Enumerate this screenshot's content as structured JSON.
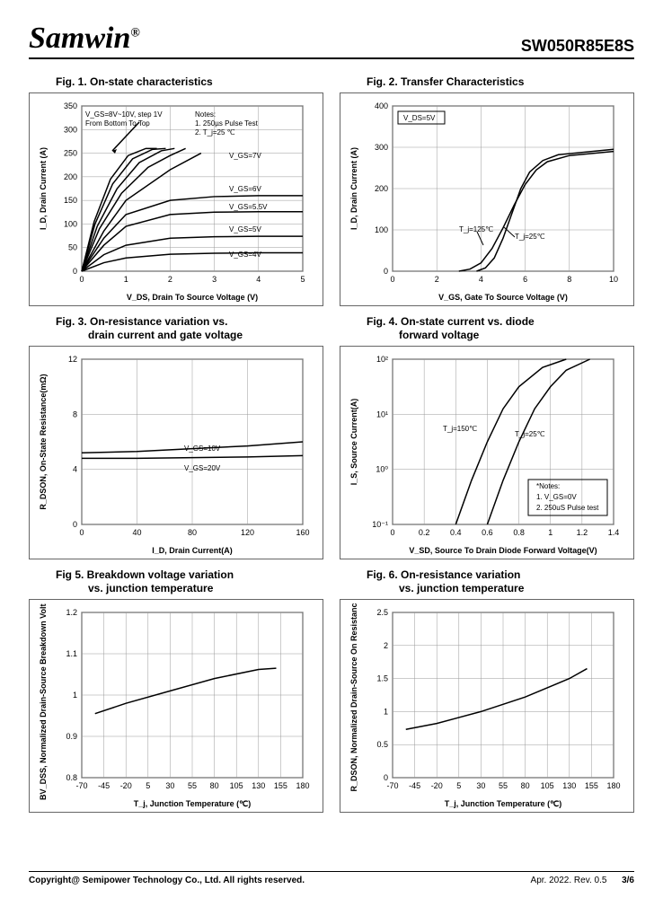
{
  "header": {
    "brand": "Samwin",
    "reg": "®",
    "part": "SW050R85E8S"
  },
  "footer": {
    "copyright": "Copyright@ Semipower Technology Co., Ltd. All rights reserved.",
    "rev": "Apr. 2022. Rev. 0.5",
    "page": "3/6"
  },
  "charts": [
    {
      "title": "Fig. 1. On-state characteristics",
      "xlabel": "V_DS, Drain To Source Voltage (V)",
      "ylabel": "I_D, Drain Current (A)",
      "xlim": [
        0,
        5
      ],
      "ylim": [
        0,
        350
      ],
      "xticks": [
        0,
        1,
        2,
        3,
        4,
        5
      ],
      "yticks": [
        0,
        50,
        100,
        150,
        200,
        250,
        300,
        350
      ],
      "annotations": [
        "V_GS=8V~10V, step 1V",
        "From Bottom To Top",
        "Notes:",
        "1. 250µs Pulse Test",
        "2. T_j=25 ℃",
        "V_GS=7V",
        "V_GS=6V",
        "V_GS=5.5V",
        "V_GS=5V",
        "V_GS=4V"
      ],
      "series": [
        {
          "pts": [
            [
              0,
              0
            ],
            [
              0.5,
              18
            ],
            [
              1,
              28
            ],
            [
              2,
              36
            ],
            [
              3,
              38
            ],
            [
              4,
              39
            ],
            [
              5,
              39
            ]
          ]
        },
        {
          "pts": [
            [
              0,
              0
            ],
            [
              0.5,
              35
            ],
            [
              1,
              55
            ],
            [
              2,
              70
            ],
            [
              3,
              73
            ],
            [
              4,
              74
            ],
            [
              5,
              74
            ]
          ]
        },
        {
          "pts": [
            [
              0,
              0
            ],
            [
              0.5,
              55
            ],
            [
              1,
              95
            ],
            [
              2,
              120
            ],
            [
              3,
              125
            ],
            [
              4,
              126
            ],
            [
              5,
              126
            ]
          ]
        },
        {
          "pts": [
            [
              0,
              0
            ],
            [
              0.5,
              70
            ],
            [
              1,
              120
            ],
            [
              2,
              150
            ],
            [
              3,
              158
            ],
            [
              4,
              160
            ],
            [
              5,
              160
            ]
          ]
        },
        {
          "pts": [
            [
              0,
              0
            ],
            [
              0.5,
              85
            ],
            [
              1,
              150
            ],
            [
              2,
              215
            ],
            [
              2.7,
              250
            ]
          ]
        },
        {
          "pts": [
            [
              0,
              0
            ],
            [
              0.4,
              90
            ],
            [
              0.9,
              165
            ],
            [
              1.5,
              220
            ],
            [
              2.0,
              245
            ],
            [
              2.35,
              260
            ]
          ]
        },
        {
          "pts": [
            [
              0,
              0
            ],
            [
              0.35,
              95
            ],
            [
              0.8,
              175
            ],
            [
              1.3,
              230
            ],
            [
              1.8,
              255
            ],
            [
              2.1,
              260
            ]
          ]
        },
        {
          "pts": [
            [
              0,
              0
            ],
            [
              0.3,
              100
            ],
            [
              0.7,
              185
            ],
            [
              1.15,
              238
            ],
            [
              1.6,
              258
            ],
            [
              1.9,
              260
            ]
          ]
        },
        {
          "pts": [
            [
              0,
              0
            ],
            [
              0.28,
              105
            ],
            [
              0.65,
              195
            ],
            [
              1.05,
              245
            ],
            [
              1.45,
              260
            ],
            [
              1.7,
              260
            ]
          ]
        }
      ]
    },
    {
      "title": "Fig. 2. Transfer Characteristics",
      "xlabel": "V_GS,  Gate To Source Voltage (V)",
      "ylabel": "I_D,  Drain Current (A)",
      "xlim": [
        0,
        10
      ],
      "ylim": [
        0,
        400
      ],
      "xticks": [
        0,
        2,
        4,
        6,
        8,
        10
      ],
      "yticks": [
        0,
        100,
        200,
        300,
        400
      ],
      "annotations": [
        "V_DS=5V",
        "T_j=125℃",
        "T_j=25℃"
      ],
      "series": [
        {
          "pts": [
            [
              3.0,
              0
            ],
            [
              3.5,
              5
            ],
            [
              4.0,
              20
            ],
            [
              4.5,
              55
            ],
            [
              5.0,
              105
            ],
            [
              5.5,
              160
            ],
            [
              6.0,
              210
            ],
            [
              6.5,
              245
            ],
            [
              7.0,
              265
            ],
            [
              8.0,
              280
            ],
            [
              10,
              290
            ]
          ]
        },
        {
          "pts": [
            [
              3.8,
              0
            ],
            [
              4.2,
              8
            ],
            [
              4.6,
              32
            ],
            [
              5.0,
              80
            ],
            [
              5.4,
              140
            ],
            [
              5.8,
              200
            ],
            [
              6.2,
              240
            ],
            [
              6.8,
              268
            ],
            [
              7.5,
              282
            ],
            [
              10,
              295
            ]
          ]
        }
      ]
    },
    {
      "title": "Fig. 3. On-resistance variation vs.",
      "subtitle": "drain current and gate voltage",
      "xlabel": "I_D, Drain Current(A)",
      "ylabel": "R_DSON, On-State Resistance(mΩ)",
      "xlim": [
        0,
        160
      ],
      "ylim": [
        0,
        12
      ],
      "xticks": [
        0,
        40,
        80,
        120,
        160
      ],
      "yticks": [
        0,
        4,
        8,
        12
      ],
      "annotations": [
        "V_GS=10V",
        "V_GS=20V"
      ],
      "series": [
        {
          "pts": [
            [
              0,
              5.2
            ],
            [
              40,
              5.3
            ],
            [
              80,
              5.5
            ],
            [
              120,
              5.7
            ],
            [
              160,
              6.0
            ]
          ]
        },
        {
          "pts": [
            [
              0,
              4.8
            ],
            [
              40,
              4.8
            ],
            [
              80,
              4.85
            ],
            [
              120,
              4.9
            ],
            [
              160,
              5.0
            ]
          ]
        }
      ]
    },
    {
      "title": "Fig. 4. On-state current vs. diode",
      "subtitle": "forward voltage",
      "xlabel": "V_SD, Source To Drain Diode Forward Voltage(V)",
      "ylabel": "I_S, Source Current(A)",
      "xlim": [
        0,
        1.4
      ],
      "ylim_log": [
        -1,
        2
      ],
      "xticks": [
        0,
        0.2,
        0.4,
        0.6,
        0.8,
        1.0,
        1.2,
        1.4
      ],
      "yticks_log": [
        -1,
        0,
        1,
        2
      ],
      "annotations": [
        "T_j=150℃",
        "T_j=25℃",
        "*Notes:",
        "1. V_GS=0V",
        "2. 250uS Pulse test"
      ],
      "series": [
        {
          "pts": [
            [
              0.4,
              -1
            ],
            [
              0.5,
              -0.2
            ],
            [
              0.6,
              0.5
            ],
            [
              0.7,
              1.1
            ],
            [
              0.8,
              1.5
            ],
            [
              0.95,
              1.85
            ],
            [
              1.1,
              2.0
            ]
          ]
        },
        {
          "pts": [
            [
              0.6,
              -1
            ],
            [
              0.7,
              -0.2
            ],
            [
              0.8,
              0.5
            ],
            [
              0.9,
              1.1
            ],
            [
              1.0,
              1.5
            ],
            [
              1.1,
              1.8
            ],
            [
              1.25,
              2.0
            ]
          ]
        }
      ]
    },
    {
      "title": "Fig 5. Breakdown voltage variation",
      "subtitle": "vs. junction temperature",
      "xlabel": "T_j, Junction Temperature (℃)",
      "ylabel": "BV_DSS, Normalized Drain-Source Breakdown Voltage",
      "xlim": [
        -70,
        180
      ],
      "ylim": [
        0.8,
        1.2
      ],
      "xticks": [
        -70,
        -45,
        -20,
        5,
        30,
        55,
        80,
        105,
        130,
        155,
        180
      ],
      "yticks": [
        0.8,
        0.9,
        1.0,
        1.1,
        1.2
      ],
      "series": [
        {
          "pts": [
            [
              -55,
              0.955
            ],
            [
              -20,
              0.98
            ],
            [
              30,
              1.01
            ],
            [
              80,
              1.04
            ],
            [
              130,
              1.062
            ],
            [
              150,
              1.065
            ]
          ]
        }
      ]
    },
    {
      "title": "Fig. 6. On-resistance variation",
      "subtitle": "vs. junction temperature",
      "xlabel": "T_j, Junction Temperature (℃)",
      "ylabel": "R_DSON, Normalized Drain-Source On Resistance",
      "xlim": [
        -70,
        180
      ],
      "ylim": [
        0,
        2.5
      ],
      "xticks": [
        -70,
        -45,
        -20,
        5,
        30,
        55,
        80,
        105,
        130,
        155,
        180
      ],
      "yticks": [
        0,
        0.5,
        1.0,
        1.5,
        2.0,
        2.5
      ],
      "series": [
        {
          "pts": [
            [
              -55,
              0.73
            ],
            [
              -20,
              0.82
            ],
            [
              30,
              1.0
            ],
            [
              80,
              1.22
            ],
            [
              130,
              1.5
            ],
            [
              150,
              1.65
            ]
          ]
        }
      ]
    }
  ]
}
